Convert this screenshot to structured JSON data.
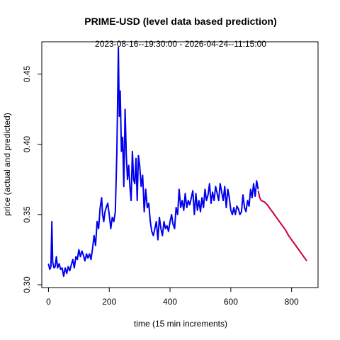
{
  "chart_data": {
    "type": "line",
    "title": "PRIME-USD (level data based prediction)",
    "subtitle": "2023-08-16--19:30:00  -  2026-04-24--11:15:00",
    "xlabel": "time (15 min increments)",
    "ylabel": "price (actual and predicted)",
    "xlim": [
      -22,
      887
    ],
    "ylim": [
      0.298,
      0.473
    ],
    "x_ticks": [
      0,
      200,
      400,
      600,
      800
    ],
    "y_ticks": [
      0.3,
      0.35,
      0.4,
      0.45
    ],
    "y_tick_labels": [
      "0.30",
      "0.35",
      "0.40",
      "0.45"
    ],
    "grid": false,
    "legend": "none",
    "series": [
      {
        "color": "#0000ee",
        "x": [
          0,
          4,
          8,
          11,
          14,
          18,
          22,
          26,
          30,
          35,
          40,
          45,
          50,
          55,
          60,
          65,
          70,
          75,
          80,
          85,
          90,
          95,
          100,
          105,
          110,
          115,
          120,
          125,
          130,
          135,
          140,
          145,
          150,
          155,
          160,
          165,
          170,
          175,
          178,
          182,
          186,
          190,
          195,
          200,
          205,
          210,
          215,
          220,
          225,
          228,
          230,
          233,
          236,
          240,
          244,
          248,
          252,
          256,
          260,
          264,
          268,
          272,
          276,
          280,
          284,
          288,
          292,
          296,
          300,
          305,
          310,
          315,
          320,
          325,
          330,
          335,
          340,
          345,
          350,
          355,
          360,
          365,
          370,
          375,
          380,
          385,
          390,
          395,
          400,
          405,
          410,
          415,
          420,
          425,
          430,
          435,
          440,
          445,
          450,
          455,
          460,
          465,
          470,
          475,
          480,
          485,
          490,
          495,
          500,
          505,
          510,
          515,
          520,
          525,
          530,
          535,
          540,
          545,
          550,
          555,
          560,
          565,
          570,
          575,
          580,
          585,
          590,
          595,
          600,
          605,
          610,
          615,
          620,
          625,
          630,
          635,
          640,
          645,
          650,
          655,
          660,
          665,
          670,
          675,
          680,
          685,
          690
        ],
        "y": [
          0.315,
          0.311,
          0.313,
          0.345,
          0.316,
          0.312,
          0.313,
          0.32,
          0.312,
          0.315,
          0.311,
          0.312,
          0.306,
          0.312,
          0.308,
          0.313,
          0.31,
          0.314,
          0.318,
          0.312,
          0.32,
          0.318,
          0.325,
          0.32,
          0.324,
          0.321,
          0.317,
          0.322,
          0.319,
          0.322,
          0.318,
          0.326,
          0.335,
          0.328,
          0.345,
          0.34,
          0.355,
          0.362,
          0.35,
          0.345,
          0.352,
          0.355,
          0.358,
          0.35,
          0.34,
          0.348,
          0.345,
          0.352,
          0.395,
          0.44,
          0.469,
          0.42,
          0.438,
          0.395,
          0.405,
          0.37,
          0.425,
          0.392,
          0.375,
          0.385,
          0.37,
          0.36,
          0.395,
          0.375,
          0.372,
          0.39,
          0.36,
          0.392,
          0.385,
          0.37,
          0.378,
          0.352,
          0.368,
          0.355,
          0.358,
          0.345,
          0.338,
          0.335,
          0.34,
          0.345,
          0.332,
          0.348,
          0.34,
          0.335,
          0.345,
          0.34,
          0.342,
          0.338,
          0.345,
          0.35,
          0.343,
          0.34,
          0.355,
          0.35,
          0.368,
          0.355,
          0.36,
          0.353,
          0.365,
          0.355,
          0.36,
          0.357,
          0.362,
          0.367,
          0.35,
          0.365,
          0.353,
          0.36,
          0.352,
          0.362,
          0.355,
          0.368,
          0.36,
          0.364,
          0.372,
          0.358,
          0.366,
          0.36,
          0.37,
          0.365,
          0.36,
          0.372,
          0.366,
          0.36,
          0.37,
          0.355,
          0.368,
          0.362,
          0.353,
          0.35,
          0.355,
          0.35,
          0.356,
          0.354,
          0.35,
          0.352,
          0.364,
          0.355,
          0.352,
          0.36,
          0.356,
          0.368,
          0.362,
          0.372,
          0.363,
          0.374,
          0.368
        ]
      },
      {
        "color": "#cc0033",
        "x": [
          690,
          695,
          700,
          710,
          720,
          730,
          740,
          750,
          760,
          770,
          780,
          790,
          800,
          810,
          820,
          830,
          840,
          850
        ],
        "y": [
          0.367,
          0.362,
          0.36,
          0.359,
          0.357,
          0.354,
          0.351,
          0.348,
          0.345,
          0.342,
          0.339,
          0.335,
          0.332,
          0.329,
          0.326,
          0.323,
          0.32,
          0.317
        ]
      }
    ]
  }
}
